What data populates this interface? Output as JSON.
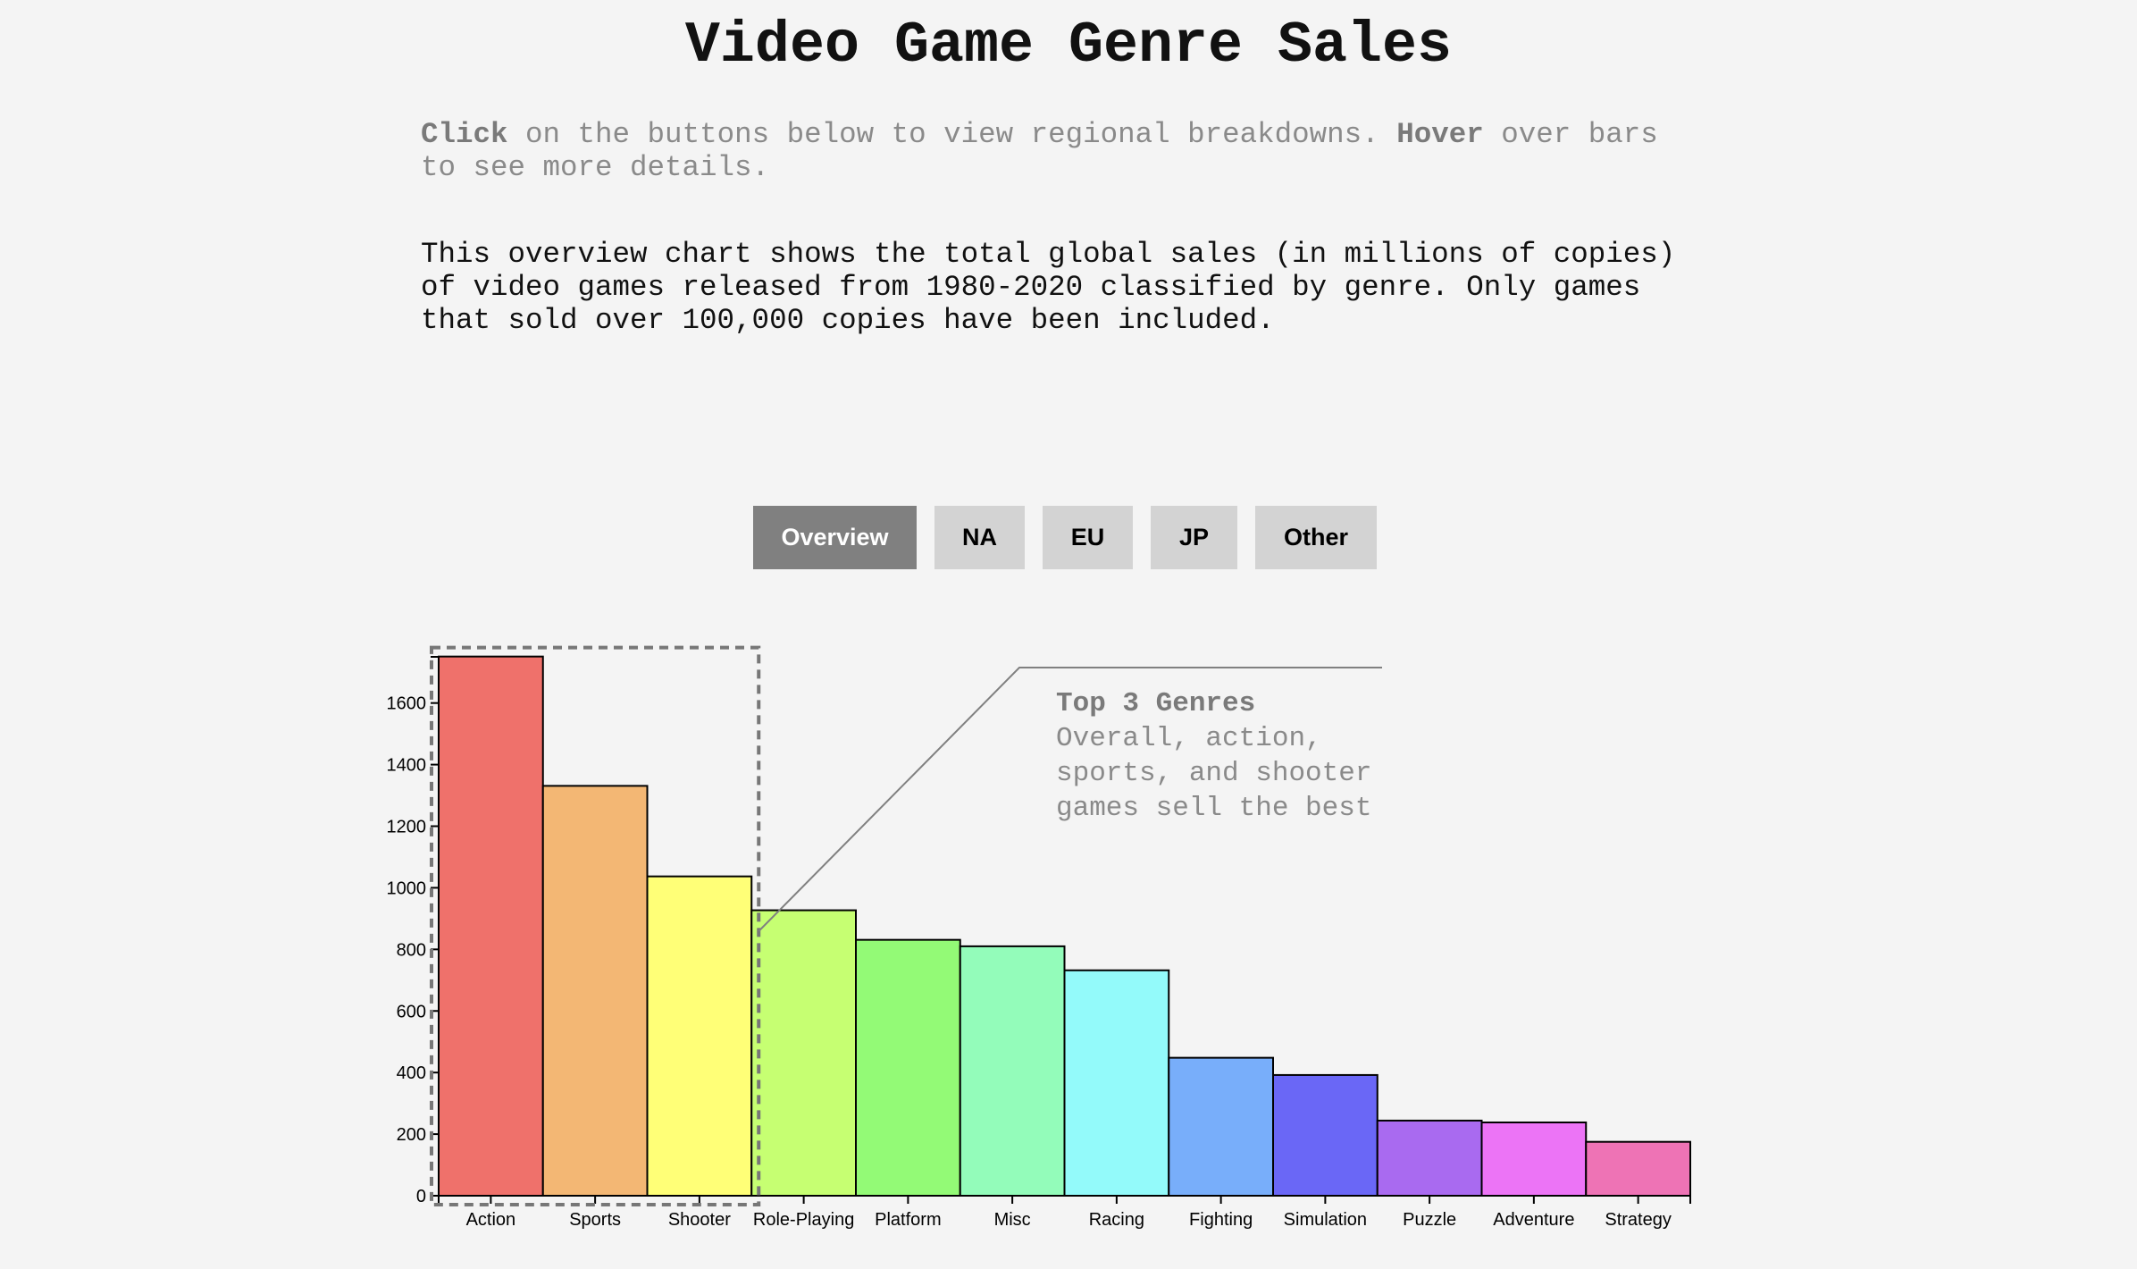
{
  "title": "Video Game Genre Sales",
  "instructions": {
    "click_word": "Click",
    "click_text": " on the buttons below to view regional breakdowns. ",
    "hover_word": "Hover",
    "hover_text": " over bars to see more details."
  },
  "description": "This overview chart shows the total global sales (in millions of copies) of video games released from 1980-2020 classified by genre. Only games that sold over 100,000 copies have been included.",
  "buttons": [
    "Overview",
    "NA",
    "EU",
    "JP",
    "Other"
  ],
  "active_button": "Overview",
  "annotation": {
    "title": "Top 3 Genres",
    "lines": [
      "Overall, action,",
      "sports, and shooter",
      "games sell the best"
    ]
  },
  "chart_data": {
    "type": "bar",
    "categories": [
      "Action",
      "Sports",
      "Shooter",
      "Role-Playing",
      "Platform",
      "Misc",
      "Racing",
      "Fighting",
      "Simulation",
      "Puzzle",
      "Adventure",
      "Strategy"
    ],
    "values": [
      1751,
      1331,
      1037,
      927,
      831,
      810,
      732,
      448,
      392,
      244,
      238,
      175
    ],
    "colors": [
      "#ef716b",
      "#f3b774",
      "#ffff77",
      "#c6ff72",
      "#93fa76",
      "#93fcba",
      "#93fafa",
      "#78aefa",
      "#6a67f6",
      "#a96af0",
      "#ec74f6",
      "#ee73b5"
    ],
    "ylim": [
      0,
      1750
    ],
    "yticks": [
      0,
      200,
      400,
      600,
      800,
      1000,
      1200,
      1400,
      1600
    ],
    "xlabel": "",
    "ylabel": "",
    "grid": false,
    "legend": "none",
    "highlight_categories": [
      "Action",
      "Sports",
      "Shooter"
    ]
  }
}
